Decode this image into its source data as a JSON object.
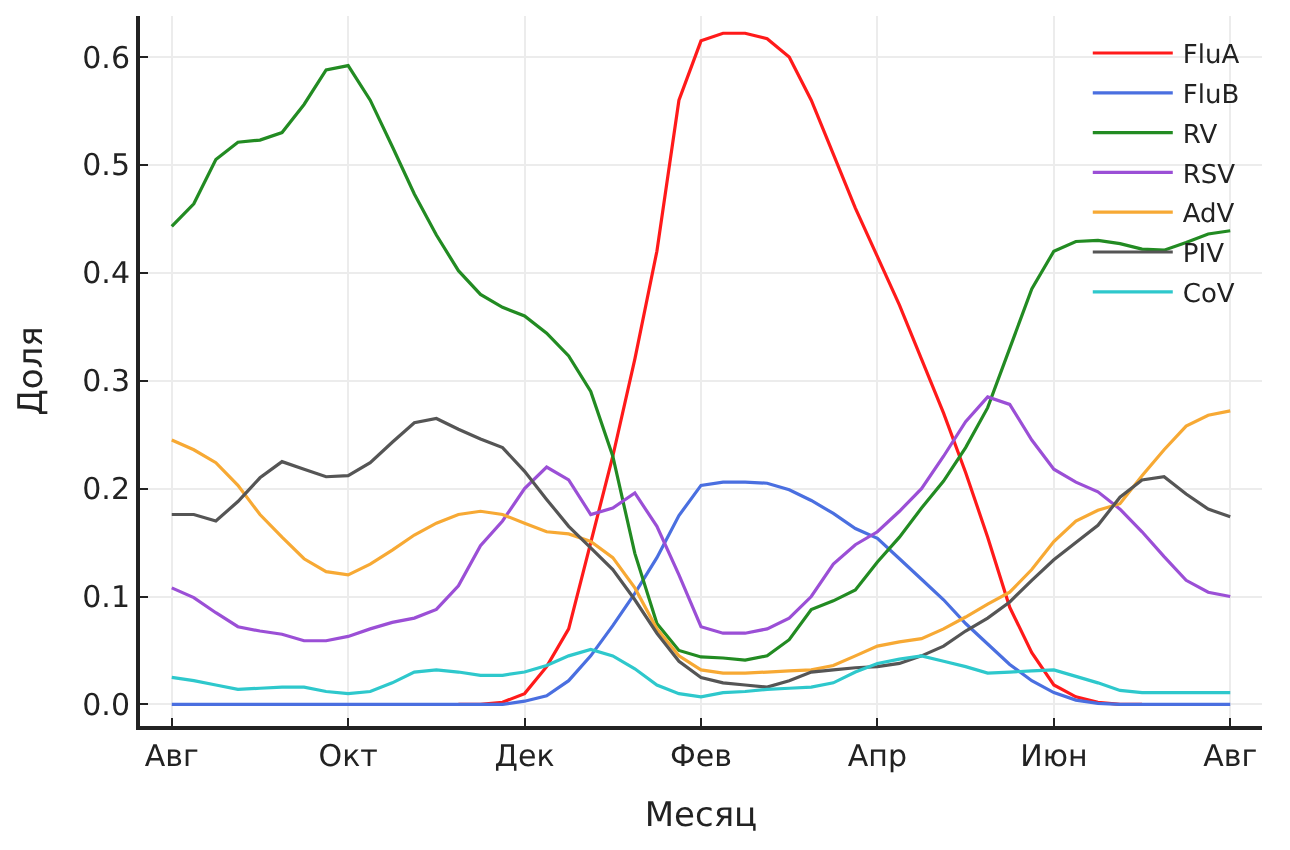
{
  "chart_data": {
    "type": "line",
    "xlabel": "Месяц",
    "ylabel": "Доля",
    "categories": [
      "Авг",
      null,
      null,
      null,
      null,
      null,
      null,
      null,
      "Окт",
      null,
      null,
      null,
      null,
      null,
      null,
      null,
      "Дек",
      null,
      null,
      null,
      null,
      null,
      null,
      null,
      "Фев",
      null,
      null,
      null,
      null,
      null,
      null,
      null,
      "Апр",
      null,
      null,
      null,
      null,
      null,
      null,
      null,
      "Июн",
      null,
      null,
      null,
      null,
      null,
      null,
      null,
      "Авг"
    ],
    "ylim": [
      -0.02,
      0.638
    ],
    "yticks": [
      {
        "value": 0,
        "label": "0.0"
      },
      0.1,
      0.2,
      0.3,
      0.4,
      0.5,
      0.6
    ],
    "grid": true,
    "legend": "top right",
    "line_style": "solid",
    "series": [
      {
        "name": "FluA",
        "color": "#ff1a1a",
        "values": [
          null,
          null,
          null,
          null,
          null,
          null,
          null,
          null,
          null,
          null,
          null,
          null,
          null,
          0,
          0,
          0.002,
          0.01,
          0.035,
          0.07,
          0.15,
          0.23,
          0.32,
          0.42,
          0.56,
          0.615,
          0.622,
          0.622,
          0.617,
          0.6,
          0.56,
          0.51,
          0.46,
          0.415,
          0.37,
          0.32,
          0.27,
          0.215,
          0.155,
          0.09,
          0.048,
          0.018,
          0.007,
          0.002,
          0,
          0,
          null,
          null,
          null,
          null
        ]
      },
      {
        "name": "FluB",
        "color": "#4a6fe0",
        "values": [
          0,
          0,
          0,
          0,
          0,
          0,
          0,
          0,
          0,
          0,
          0,
          0,
          0,
          0,
          0,
          0,
          0.003,
          0.008,
          0.022,
          0.045,
          0.073,
          0.103,
          0.136,
          0.175,
          0.203,
          0.206,
          0.206,
          0.205,
          0.199,
          0.189,
          0.177,
          0.163,
          0.154,
          0.135,
          0.116,
          0.097,
          0.075,
          0.056,
          0.037,
          0.022,
          0.011,
          0.004,
          0.001,
          0,
          0,
          0,
          0,
          0,
          0
        ]
      },
      {
        "name": "RV",
        "color": "#228b22",
        "values": [
          0.443,
          0.464,
          0.505,
          0.521,
          0.523,
          0.53,
          0.556,
          0.588,
          0.592,
          0.56,
          0.517,
          0.473,
          0.435,
          0.402,
          0.38,
          0.368,
          0.36,
          0.344,
          0.323,
          0.29,
          0.23,
          0.14,
          0.075,
          0.05,
          0.044,
          0.043,
          0.041,
          0.045,
          0.06,
          0.088,
          0.096,
          0.106,
          0.132,
          0.155,
          0.182,
          0.207,
          0.238,
          0.275,
          0.33,
          0.385,
          0.42,
          0.429,
          0.43,
          0.427,
          0.422,
          0.421,
          0.428,
          0.436,
          0.439
        ]
      },
      {
        "name": "RSV",
        "color": "#9b4fd6",
        "values": [
          0.108,
          0.099,
          0.085,
          0.072,
          0.068,
          0.065,
          0.059,
          0.059,
          0.063,
          0.07,
          0.076,
          0.08,
          0.088,
          0.11,
          0.147,
          0.17,
          0.2,
          0.22,
          0.208,
          0.176,
          0.182,
          0.196,
          0.165,
          0.12,
          0.072,
          0.066,
          0.066,
          0.07,
          0.08,
          0.1,
          0.13,
          0.148,
          0.16,
          0.179,
          0.2,
          0.23,
          0.262,
          0.285,
          0.278,
          0.245,
          0.218,
          0.206,
          0.197,
          0.181,
          0.16,
          0.137,
          0.115,
          0.104,
          0.1
        ]
      },
      {
        "name": "AdV",
        "color": "#f7a934",
        "values": [
          0.245,
          0.236,
          0.224,
          0.203,
          0.176,
          0.155,
          0.135,
          0.123,
          0.12,
          0.13,
          0.143,
          0.157,
          0.168,
          0.176,
          0.179,
          0.176,
          0.168,
          0.16,
          0.158,
          0.151,
          0.136,
          0.108,
          0.07,
          0.045,
          0.032,
          0.029,
          0.029,
          0.03,
          0.031,
          0.032,
          0.036,
          0.045,
          0.054,
          0.058,
          0.061,
          0.07,
          0.081,
          0.093,
          0.104,
          0.125,
          0.151,
          0.17,
          0.18,
          0.186,
          0.212,
          0.236,
          0.258,
          0.268,
          0.272
        ]
      },
      {
        "name": "PIV",
        "color": "#555555",
        "values": [
          0.176,
          0.176,
          0.17,
          0.188,
          0.21,
          0.225,
          0.218,
          0.211,
          0.212,
          0.224,
          0.243,
          0.261,
          0.265,
          0.255,
          0.246,
          0.238,
          0.216,
          0.19,
          0.165,
          0.145,
          0.125,
          0.097,
          0.066,
          0.04,
          0.025,
          0.02,
          0.018,
          0.016,
          0.022,
          0.03,
          0.032,
          0.034,
          0.035,
          0.038,
          0.045,
          0.054,
          0.068,
          0.08,
          0.095,
          0.115,
          0.134,
          0.15,
          0.166,
          0.192,
          0.208,
          0.211,
          0.195,
          0.181,
          0.174
        ]
      },
      {
        "name": "CoV",
        "color": "#2ec8cc",
        "values": [
          0.025,
          0.022,
          0.018,
          0.014,
          0.015,
          0.016,
          0.016,
          0.012,
          0.01,
          0.012,
          0.02,
          0.03,
          0.032,
          0.03,
          0.027,
          0.027,
          0.03,
          0.036,
          0.045,
          0.051,
          0.045,
          0.033,
          0.018,
          0.01,
          0.007,
          0.011,
          0.012,
          0.014,
          0.015,
          0.016,
          0.02,
          0.03,
          0.038,
          0.042,
          0.045,
          0.04,
          0.035,
          0.029,
          0.03,
          0.031,
          0.032,
          0.026,
          0.02,
          0.013,
          0.011,
          0.011,
          0.011,
          0.011,
          0.011
        ]
      }
    ]
  }
}
